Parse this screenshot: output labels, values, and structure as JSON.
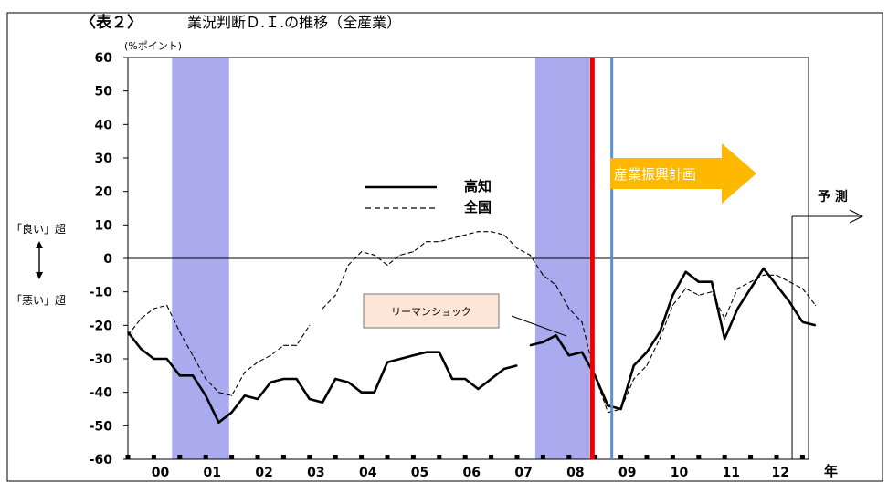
{
  "page": {
    "title_prefix": "〈表２〉",
    "title": "業況判断Ｄ.Ｉ.の推移（全産業）"
  },
  "chart_data": {
    "type": "line",
    "unit_label": "(%ポイント)",
    "x_label": "年",
    "ylim": [
      -60,
      60
    ],
    "y_ticks": [
      60,
      50,
      40,
      30,
      20,
      10,
      0,
      -10,
      -20,
      -30,
      -40,
      -50,
      -60
    ],
    "xlim": [
      0,
      51
    ],
    "x_tick_labels": [
      {
        "label": "00",
        "x": 2.5
      },
      {
        "label": "01",
        "x": 6.5
      },
      {
        "label": "02",
        "x": 10.5
      },
      {
        "label": "03",
        "x": 14.5
      },
      {
        "label": "04",
        "x": 18.5
      },
      {
        "label": "05",
        "x": 22.5
      },
      {
        "label": "06",
        "x": 26.5
      },
      {
        "label": "07",
        "x": 30.5
      },
      {
        "label": "08",
        "x": 34.5
      },
      {
        "label": "09",
        "x": 38.5
      },
      {
        "label": "10",
        "x": 42.5
      },
      {
        "label": "11",
        "x": 46.5
      },
      {
        "label": "12",
        "x": 50.3
      }
    ],
    "shaded_periods": [
      {
        "from": 3.4,
        "to": 7.8
      },
      {
        "from": 31.4,
        "to": 35.6
      }
    ],
    "series": [
      {
        "name": "高知",
        "style": "solid",
        "color": "#000000",
        "segments": [
          {
            "x": [
              0,
              1,
              2,
              3,
              4,
              5,
              6,
              7,
              8,
              9,
              10,
              11,
              12,
              13,
              14,
              15,
              16,
              17,
              18,
              19,
              20,
              21,
              22,
              23,
              24,
              25,
              26,
              27,
              28,
              29,
              30
            ],
            "y": [
              -22,
              -27,
              -30,
              -30,
              -35,
              -35,
              -41,
              -49,
              -46,
              -41,
              -42,
              -37,
              -36,
              -36,
              -42,
              -43,
              -36,
              -37,
              -40,
              -40,
              -31,
              -30,
              -29,
              -28,
              -28,
              -36,
              -36,
              -39,
              -36,
              -33,
              -32
            ]
          },
          {
            "x": [
              31,
              32,
              33,
              34,
              35,
              36,
              37,
              38,
              39,
              40,
              41,
              42,
              43,
              44,
              45,
              46,
              47,
              48,
              49,
              50
            ],
            "y": [
              -26,
              -25,
              -23,
              -29,
              -28,
              -35,
              -44,
              -45,
              -32,
              -28,
              -22,
              -11,
              -4,
              -7,
              -7,
              -24,
              -15,
              -9,
              -3,
              -8
            ]
          },
          {
            "x": [
              50,
              51,
              52
            ],
            "y": [
              -8,
              -13,
              -19
            ]
          },
          {
            "x": [
              52,
              53
            ],
            "y": [
              -19,
              -20
            ]
          }
        ]
      },
      {
        "name": "全国",
        "style": "dashed",
        "color": "#000000",
        "segments": [
          {
            "x": [
              0,
              1,
              2,
              3,
              4,
              5,
              6,
              7,
              8,
              9,
              10,
              11,
              12,
              13,
              14
            ],
            "y": [
              -23,
              -18,
              -15,
              -14,
              -22,
              -29,
              -36,
              -40,
              -41,
              -34,
              -31,
              -29,
              -26,
              -26,
              -20
            ]
          },
          {
            "x": [
              15,
              16,
              17,
              18,
              19,
              20,
              21,
              22,
              23,
              24,
              25,
              26,
              27,
              28,
              29,
              30,
              31,
              32,
              33,
              34,
              35,
              36,
              37,
              38,
              39,
              40,
              41,
              42,
              43,
              44,
              45,
              46,
              47,
              48,
              49,
              50,
              51,
              52,
              53
            ],
            "y": [
              -15,
              -11,
              -2,
              2,
              1,
              -2,
              1,
              2,
              5,
              5,
              6,
              7,
              8,
              8,
              7,
              3,
              1,
              -5,
              -8,
              -15,
              -19,
              -35,
              -46,
              -45,
              -36,
              -32,
              -24,
              -14,
              -9,
              -11,
              -10,
              -18,
              -9,
              -7,
              -5,
              -5,
              -7,
              -9,
              -14
            ]
          }
        ]
      }
    ],
    "legend": {
      "position": "center",
      "entries": [
        {
          "label": "高知",
          "style": "solid"
        },
        {
          "label": "全国",
          "style": "dashed"
        }
      ]
    },
    "annotations": {
      "good_label": "「良い」超",
      "bad_label": "「悪い」超",
      "lehman_label": "リーマンショック",
      "program_label": "産業振興計画",
      "forecast_label": "予 測",
      "red_line_x": 35.8,
      "blue_line_x": 37.3,
      "forecast_x": 51.2
    },
    "colors": {
      "shade": "#aaaaee",
      "red_line": "#ee0000",
      "blue_line": "#5b8fd0",
      "program_arrow": "#ffb800",
      "lehman_box": "#fde6d8"
    },
    "grid": false
  }
}
